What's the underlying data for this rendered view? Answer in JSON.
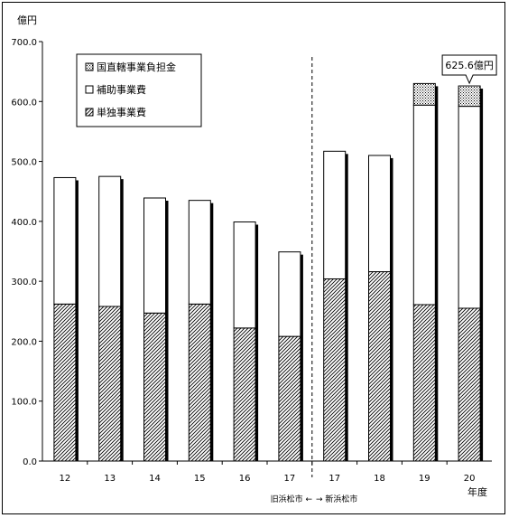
{
  "chart_data": {
    "type": "bar",
    "stacked": true,
    "y_unit_label": "億円",
    "x_unit_label": "年度",
    "categories": [
      "12",
      "13",
      "14",
      "15",
      "16",
      "17",
      "17",
      "18",
      "19",
      "20"
    ],
    "series": [
      {
        "name": "単独事業費",
        "pattern": "diagonal-hatch",
        "values": [
          262,
          258,
          247,
          262,
          222,
          208,
          304,
          316,
          261,
          255
        ]
      },
      {
        "name": "補助事業費",
        "pattern": "white",
        "values": [
          211,
          217,
          192,
          173,
          177,
          141,
          213,
          194,
          333,
          337
        ]
      },
      {
        "name": "国直轄事業負担金",
        "pattern": "dots",
        "values": [
          0,
          0,
          0,
          0,
          0,
          0,
          0,
          0,
          36,
          34
        ]
      }
    ],
    "ylim": [
      0,
      700
    ],
    "yticks": [
      "0.0",
      "100.0",
      "200.0",
      "300.0",
      "400.0",
      "500.0",
      "600.0",
      "700.0"
    ],
    "grid": false,
    "legend_placement": "top-left",
    "callout": {
      "category_index": 9,
      "text": "625.6億円"
    },
    "divider": {
      "after_index": 5,
      "left_label": "旧浜松市 ←",
      "right_label": "→ 新浜松市"
    },
    "colors": {
      "bar_stroke": "#000000",
      "shadow": "#000000",
      "fill": "#ffffff"
    }
  }
}
